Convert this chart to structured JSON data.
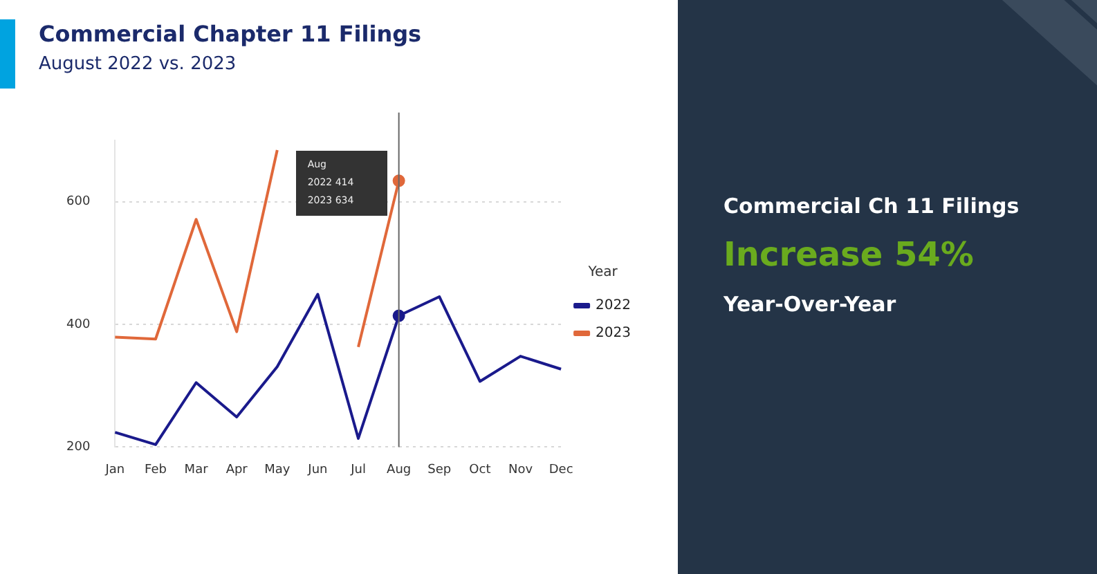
{
  "chart_data": [
    {
      "type": "line",
      "title": "Commercial Chapter 11 Filings",
      "subtitle": "August 2022 vs. 2023",
      "categories": [
        "Jan",
        "Feb",
        "Mar",
        "Apr",
        "May",
        "Jun",
        "Jul",
        "Aug",
        "Sep",
        "Oct",
        "Nov",
        "Dec"
      ],
      "series": [
        {
          "name": "2022",
          "color": "#1a1a8c",
          "values": [
            224,
            204,
            305,
            249,
            331,
            449,
            214,
            414,
            445,
            307,
            348,
            327
          ]
        },
        {
          "name": "2023",
          "color": "#e0683a",
          "values": [
            379,
            376,
            571,
            388,
            684,
            null,
            363,
            634,
            null,
            null,
            null,
            null
          ]
        }
      ],
      "ylim": [
        200,
        700
      ],
      "yticks": [
        200,
        400,
        600
      ],
      "grid": "y",
      "legend": "right",
      "legend_title": "Year",
      "marker": "none",
      "line_style": "solid",
      "ref_lines": [
        {
          "axis": "x",
          "value": "Aug",
          "color": "#666666"
        }
      ],
      "annotations": [
        "Aug",
        "2022 414",
        "2023 634"
      ]
    },
    {
      "type": "other",
      "title": "Commercial Ch 11 Filings",
      "annotations": [
        "Increase 54%",
        "Year-Over-Year"
      ]
    }
  ]
}
